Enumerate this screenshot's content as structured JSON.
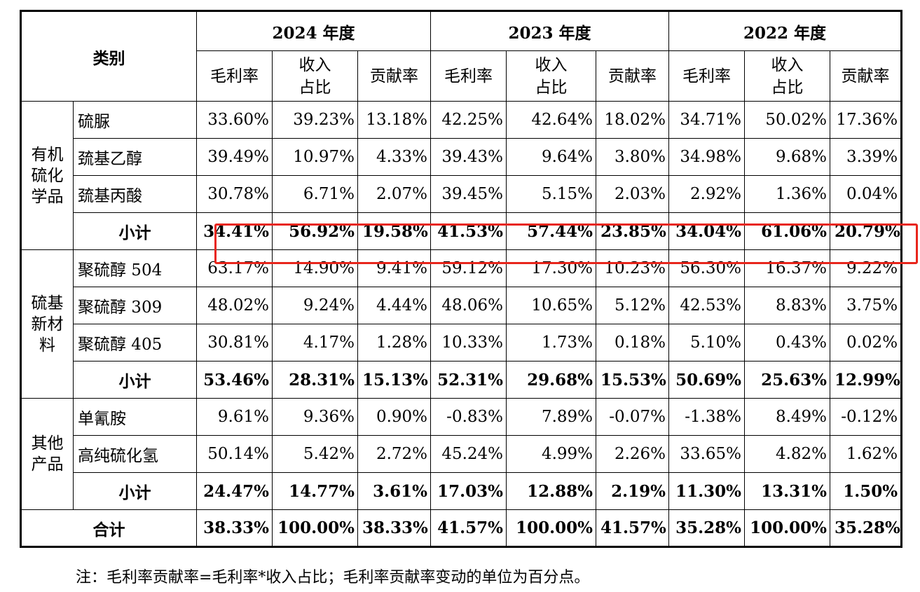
{
  "header": {
    "category_label": "类别",
    "years": [
      "2024 年度",
      "2023 年度",
      "2022 年度"
    ],
    "metrics": [
      "毛利率",
      "收入\n占比",
      "贡献率"
    ]
  },
  "groups": [
    {
      "name": "有机\n硫化\n学品",
      "rows": [
        {
          "label": "硫脲",
          "values": [
            "33.60%",
            "39.23%",
            "13.18%",
            "42.25%",
            "42.64%",
            "18.02%",
            "34.71%",
            "50.02%",
            "17.36%"
          ]
        },
        {
          "label": "巯基乙醇",
          "values": [
            "39.49%",
            "10.97%",
            "4.33%",
            "39.43%",
            "9.64%",
            "3.80%",
            "34.98%",
            "9.68%",
            "3.39%"
          ]
        },
        {
          "label": "巯基丙酸",
          "values": [
            "30.78%",
            "6.71%",
            "2.07%",
            "39.45%",
            "5.15%",
            "2.03%",
            "2.92%",
            "1.36%",
            "0.04%"
          ]
        }
      ],
      "subtotal": {
        "label": "小计",
        "values": [
          "34.41%",
          "56.92%",
          "19.58%",
          "41.53%",
          "57.44%",
          "23.85%",
          "34.04%",
          "61.06%",
          "20.79%"
        ]
      }
    },
    {
      "name": "硫基\n新材\n料",
      "rows": [
        {
          "label": "聚硫醇 504",
          "values": [
            "63.17%",
            "14.90%",
            "9.41%",
            "59.12%",
            "17.30%",
            "10.23%",
            "56.30%",
            "16.37%",
            "9.22%"
          ]
        },
        {
          "label": "聚硫醇 309",
          "values": [
            "48.02%",
            "9.24%",
            "4.44%",
            "48.06%",
            "10.65%",
            "5.12%",
            "42.53%",
            "8.83%",
            "3.75%"
          ]
        },
        {
          "label": "聚硫醇 405",
          "values": [
            "30.81%",
            "4.17%",
            "1.28%",
            "10.33%",
            "1.73%",
            "0.18%",
            "5.10%",
            "0.43%",
            "0.02%"
          ]
        }
      ],
      "subtotal": {
        "label": "小计",
        "values": [
          "53.46%",
          "28.31%",
          "15.13%",
          "52.31%",
          "29.68%",
          "15.53%",
          "50.69%",
          "25.63%",
          "12.99%"
        ]
      }
    },
    {
      "name": "其他\n产品",
      "rows": [
        {
          "label": "单氰胺",
          "values": [
            "9.61%",
            "9.36%",
            "0.90%",
            "-0.83%",
            "7.89%",
            "-0.07%",
            "-1.38%",
            "8.49%",
            "-0.12%"
          ]
        },
        {
          "label": "高纯硫化氢",
          "values": [
            "50.14%",
            "5.42%",
            "2.72%",
            "45.24%",
            "4.99%",
            "2.26%",
            "33.65%",
            "4.82%",
            "1.62%"
          ]
        }
      ],
      "subtotal": {
        "label": "小计",
        "values": [
          "24.47%",
          "14.77%",
          "3.61%",
          "17.03%",
          "12.88%",
          "2.19%",
          "11.30%",
          "13.31%",
          "1.50%"
        ]
      }
    }
  ],
  "total": {
    "label": "合计",
    "values": [
      "38.33%",
      "100.00%",
      "38.33%",
      "41.57%",
      "100.00%",
      "41.57%",
      "35.28%",
      "100.00%",
      "35.28%"
    ]
  },
  "note": "注：毛利率贡献率=毛利率*收入占比；毛利率贡献率变动的单位为百分点。",
  "colors": {
    "highlight": "#e8261c"
  }
}
